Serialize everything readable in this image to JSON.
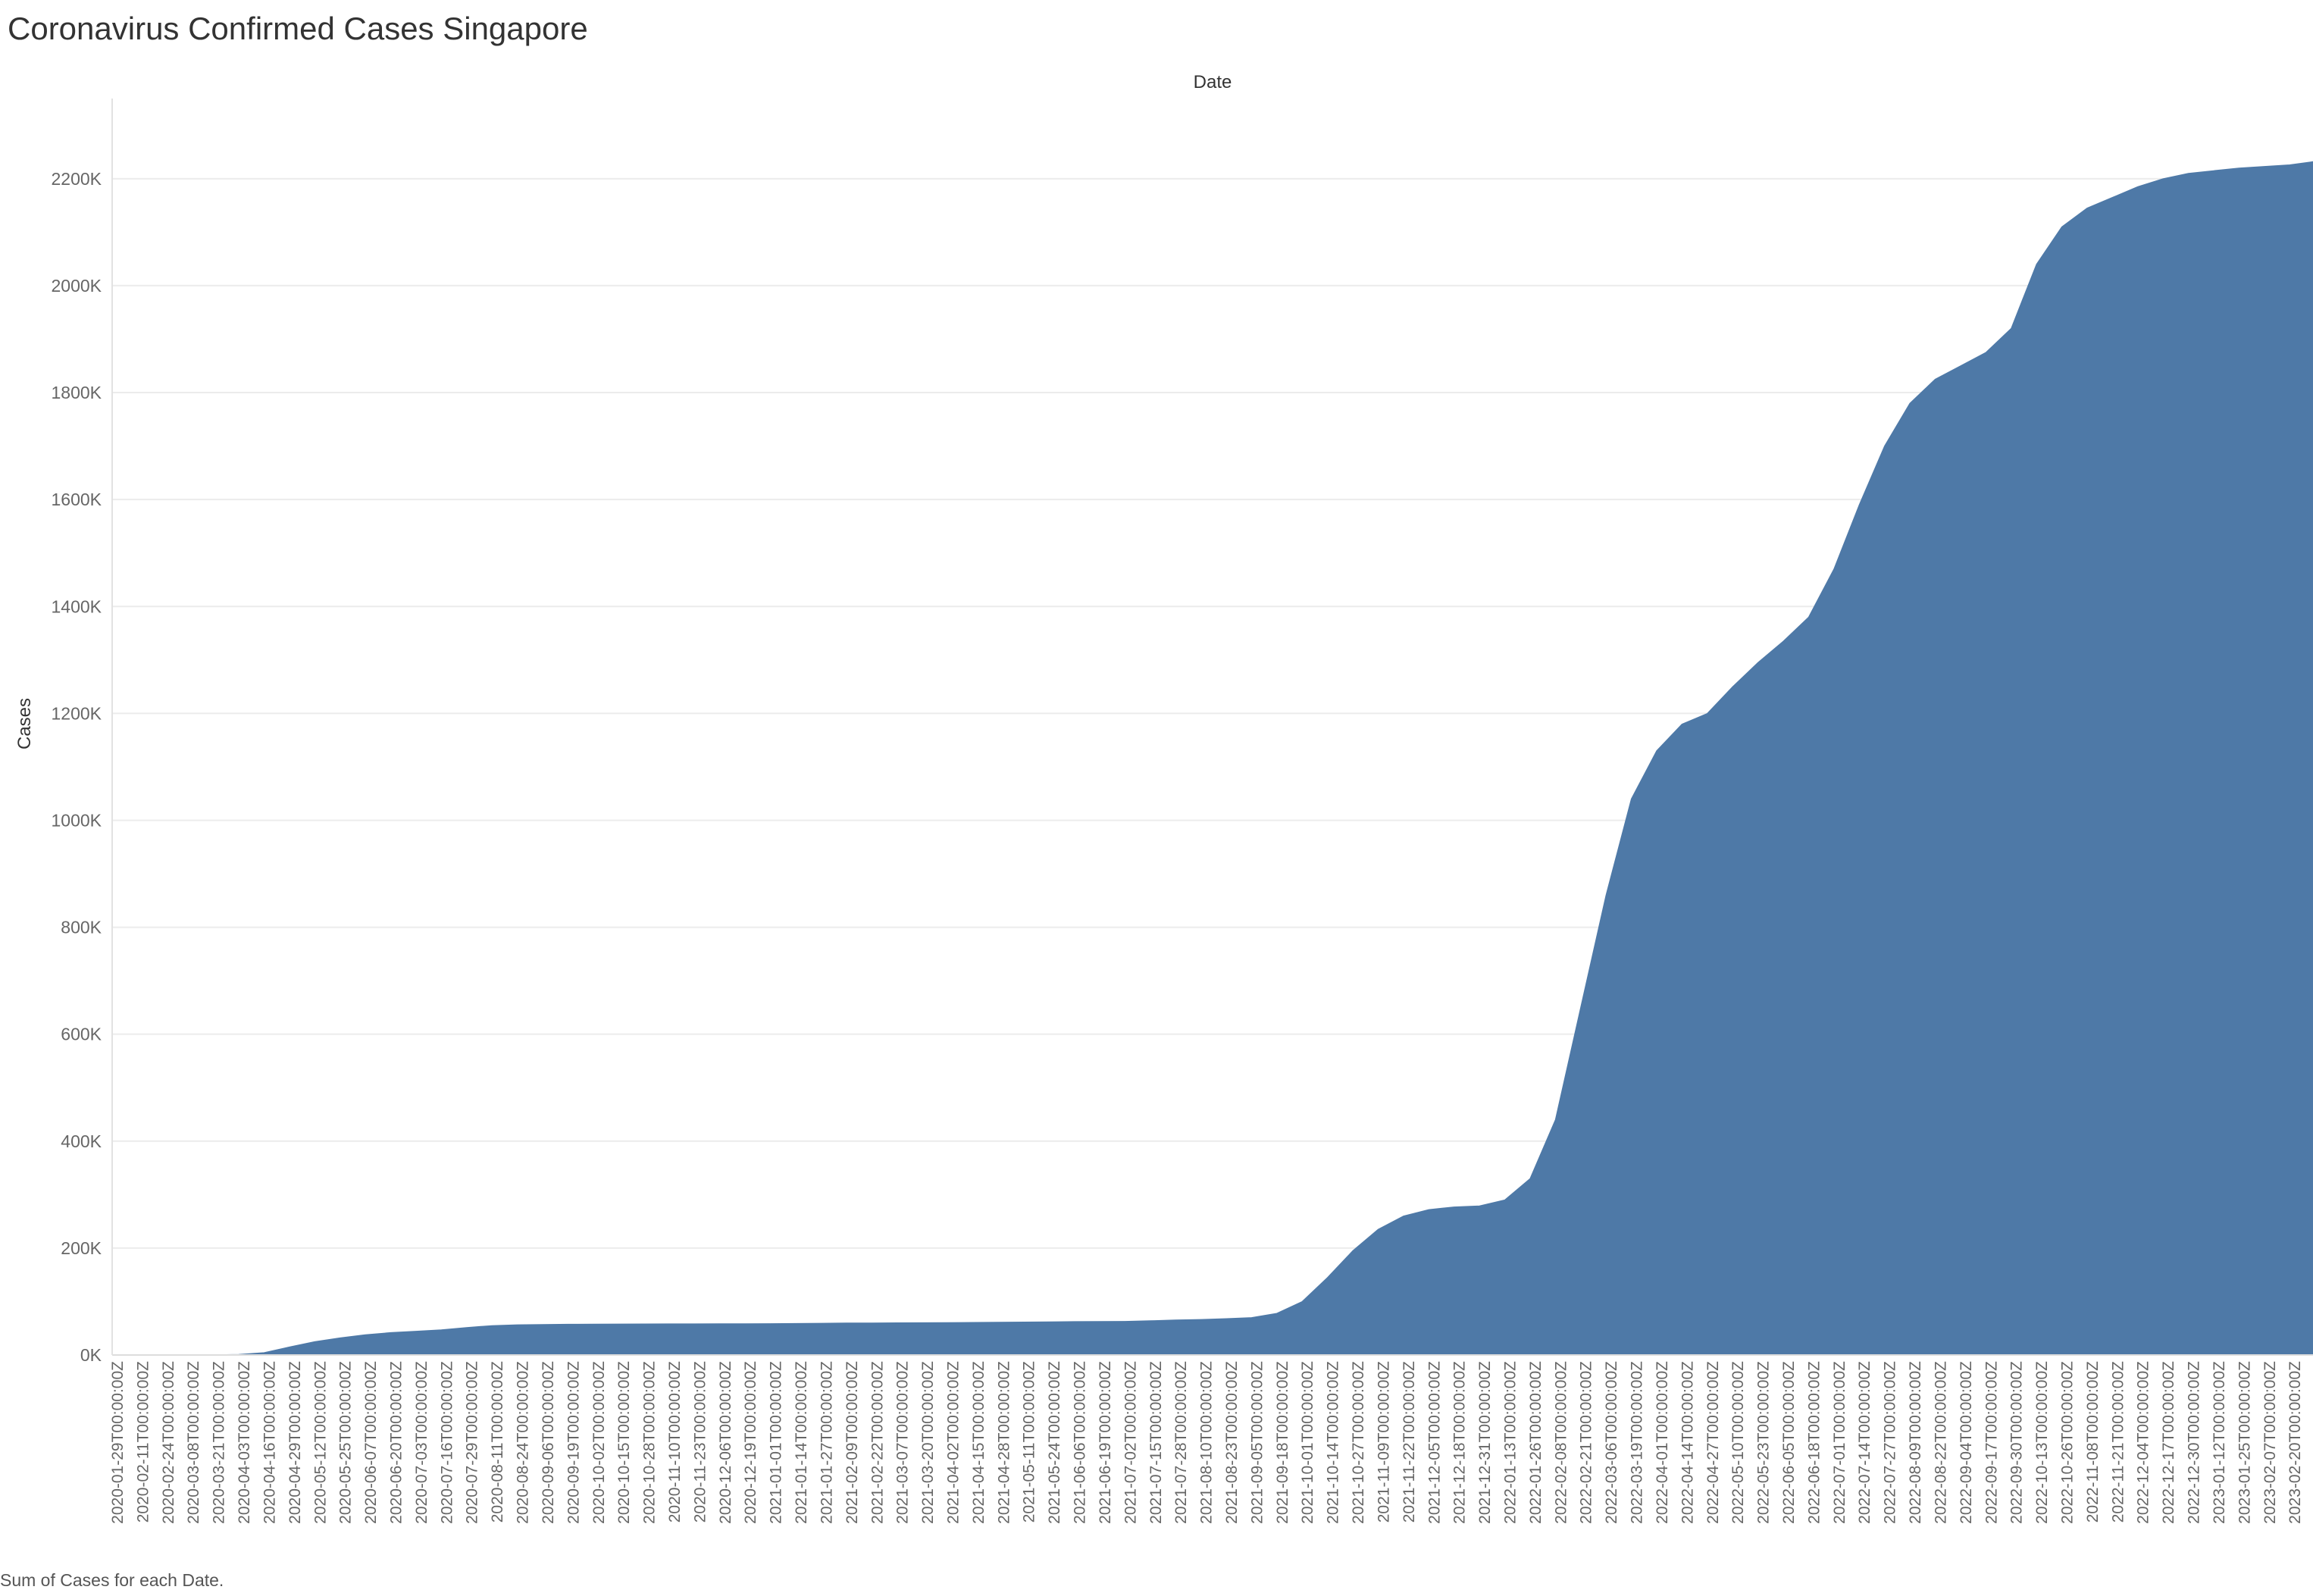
{
  "title": "Coronavirus Confirmed Cases Singapore",
  "footer": "Sum of Cases for each Date.",
  "chart_data": {
    "type": "area",
    "column_header": "Date",
    "ylabel": "Cases",
    "ylim": [
      0,
      2350000
    ],
    "y_ticks": [
      0,
      200000,
      400000,
      600000,
      800000,
      1000000,
      1200000,
      1400000,
      1600000,
      1800000,
      2000000,
      2200000
    ],
    "y_tick_labels": [
      "0K",
      "200K",
      "400K",
      "600K",
      "800K",
      "1000K",
      "1200K",
      "1400K",
      "1600K",
      "1800K",
      "2000K",
      "2200K"
    ],
    "grid": "horizontal",
    "color": "#4e79a7",
    "x_tick_labels": [
      "2020-01-29T00:00:00Z",
      "2020-02-11T00:00:00Z",
      "2020-02-24T00:00:00Z",
      "2020-03-08T00:00:00Z",
      "2020-03-21T00:00:00Z",
      "2020-04-03T00:00:00Z",
      "2020-04-16T00:00:00Z",
      "2020-04-29T00:00:00Z",
      "2020-05-12T00:00:00Z",
      "2020-05-25T00:00:00Z",
      "2020-06-07T00:00:00Z",
      "2020-06-20T00:00:00Z",
      "2020-07-03T00:00:00Z",
      "2020-07-16T00:00:00Z",
      "2020-07-29T00:00:00Z",
      "2020-08-11T00:00:00Z",
      "2020-08-24T00:00:00Z",
      "2020-09-06T00:00:00Z",
      "2020-09-19T00:00:00Z",
      "2020-10-02T00:00:00Z",
      "2020-10-15T00:00:00Z",
      "2020-10-28T00:00:00Z",
      "2020-11-10T00:00:00Z",
      "2020-11-23T00:00:00Z",
      "2020-12-06T00:00:00Z",
      "2020-12-19T00:00:00Z",
      "2021-01-01T00:00:00Z",
      "2021-01-14T00:00:00Z",
      "2021-01-27T00:00:00Z",
      "2021-02-09T00:00:00Z",
      "2021-02-22T00:00:00Z",
      "2021-03-07T00:00:00Z",
      "2021-03-20T00:00:00Z",
      "2021-04-02T00:00:00Z",
      "2021-04-15T00:00:00Z",
      "2021-04-28T00:00:00Z",
      "2021-05-11T00:00:00Z",
      "2021-05-24T00:00:00Z",
      "2021-06-06T00:00:00Z",
      "2021-06-19T00:00:00Z",
      "2021-07-02T00:00:00Z",
      "2021-07-15T00:00:00Z",
      "2021-07-28T00:00:00Z",
      "2021-08-10T00:00:00Z",
      "2021-08-23T00:00:00Z",
      "2021-09-05T00:00:00Z",
      "2021-09-18T00:00:00Z",
      "2021-10-01T00:00:00Z",
      "2021-10-14T00:00:00Z",
      "2021-10-27T00:00:00Z",
      "2021-11-09T00:00:00Z",
      "2021-11-22T00:00:00Z",
      "2021-12-05T00:00:00Z",
      "2021-12-18T00:00:00Z",
      "2021-12-31T00:00:00Z",
      "2022-01-13T00:00:00Z",
      "2022-01-26T00:00:00Z",
      "2022-02-08T00:00:00Z",
      "2022-02-21T00:00:00Z",
      "2022-03-06T00:00:00Z",
      "2022-03-19T00:00:00Z",
      "2022-04-01T00:00:00Z",
      "2022-04-14T00:00:00Z",
      "2022-04-27T00:00:00Z",
      "2022-05-10T00:00:00Z",
      "2022-05-23T00:00:00Z",
      "2022-06-05T00:00:00Z",
      "2022-06-18T00:00:00Z",
      "2022-07-01T00:00:00Z",
      "2022-07-14T00:00:00Z",
      "2022-07-27T00:00:00Z",
      "2022-08-09T00:00:00Z",
      "2022-08-22T00:00:00Z",
      "2022-09-04T00:00:00Z",
      "2022-09-17T00:00:00Z",
      "2022-09-30T00:00:00Z",
      "2022-10-13T00:00:00Z",
      "2022-10-26T00:00:00Z",
      "2022-11-08T00:00:00Z",
      "2022-11-21T00:00:00Z",
      "2022-12-04T00:00:00Z",
      "2022-12-17T00:00:00Z",
      "2022-12-30T00:00:00Z",
      "2023-01-12T00:00:00Z",
      "2023-01-25T00:00:00Z",
      "2023-02-07T00:00:00Z",
      "2023-02-20T00:00:00Z"
    ],
    "x": [
      "2020-01-29",
      "2020-02-11",
      "2020-02-24",
      "2020-03-08",
      "2020-03-21",
      "2020-04-03",
      "2020-04-16",
      "2020-04-29",
      "2020-05-12",
      "2020-05-25",
      "2020-06-07",
      "2020-06-20",
      "2020-07-03",
      "2020-07-16",
      "2020-07-29",
      "2020-08-11",
      "2020-08-24",
      "2020-09-06",
      "2020-09-19",
      "2020-10-02",
      "2020-10-15",
      "2020-10-28",
      "2020-11-10",
      "2020-11-23",
      "2020-12-06",
      "2020-12-19",
      "2021-01-01",
      "2021-01-14",
      "2021-01-27",
      "2021-02-09",
      "2021-02-22",
      "2021-03-07",
      "2021-03-20",
      "2021-04-02",
      "2021-04-15",
      "2021-04-28",
      "2021-05-11",
      "2021-05-24",
      "2021-06-06",
      "2021-06-19",
      "2021-07-02",
      "2021-07-15",
      "2021-07-28",
      "2021-08-10",
      "2021-08-23",
      "2021-09-05",
      "2021-09-18",
      "2021-10-01",
      "2021-10-14",
      "2021-10-27",
      "2021-11-09",
      "2021-11-22",
      "2021-12-05",
      "2021-12-18",
      "2021-12-31",
      "2022-01-13",
      "2022-01-26",
      "2022-02-08",
      "2022-02-21",
      "2022-03-06",
      "2022-03-19",
      "2022-04-01",
      "2022-04-14",
      "2022-04-27",
      "2022-05-10",
      "2022-05-23",
      "2022-06-05",
      "2022-06-18",
      "2022-07-01",
      "2022-07-14",
      "2022-07-27",
      "2022-08-09",
      "2022-08-22",
      "2022-09-04",
      "2022-09-17",
      "2022-09-30",
      "2022-10-13",
      "2022-10-26",
      "2022-11-08",
      "2022-11-21",
      "2022-12-04",
      "2022-12-17",
      "2022-12-30",
      "2023-01-12",
      "2023-01-25",
      "2023-02-07",
      "2023-02-20",
      "2023-03-04"
    ],
    "series": [
      {
        "values": [
          10,
          50,
          90,
          150,
          400,
          1100,
          4400,
          15000,
          25000,
          32000,
          38000,
          42000,
          44500,
          47000,
          51500,
          55000,
          56500,
          57000,
          57500,
          57800,
          58000,
          58100,
          58200,
          58300,
          58400,
          58500,
          58700,
          59000,
          59400,
          59800,
          60000,
          60200,
          60400,
          60600,
          61000,
          61300,
          61600,
          62000,
          62500,
          62800,
          63000,
          64000,
          65500,
          66500,
          68000,
          70000,
          78000,
          100000,
          145000,
          195000,
          235000,
          260000,
          272000,
          277000,
          279000,
          290000,
          330000,
          440000,
          650000,
          860000,
          1040000,
          1130000,
          1180000,
          1200000,
          1250000,
          1295000,
          1335000,
          1380000,
          1470000,
          1590000,
          1700000,
          1780000,
          1825000,
          1850000,
          1875000,
          1920000,
          2040000,
          2110000,
          2145000,
          2165000,
          2185000,
          2200000,
          2210000,
          2215000,
          2220000,
          2223000,
          2226000,
          2232000
        ]
      }
    ]
  }
}
